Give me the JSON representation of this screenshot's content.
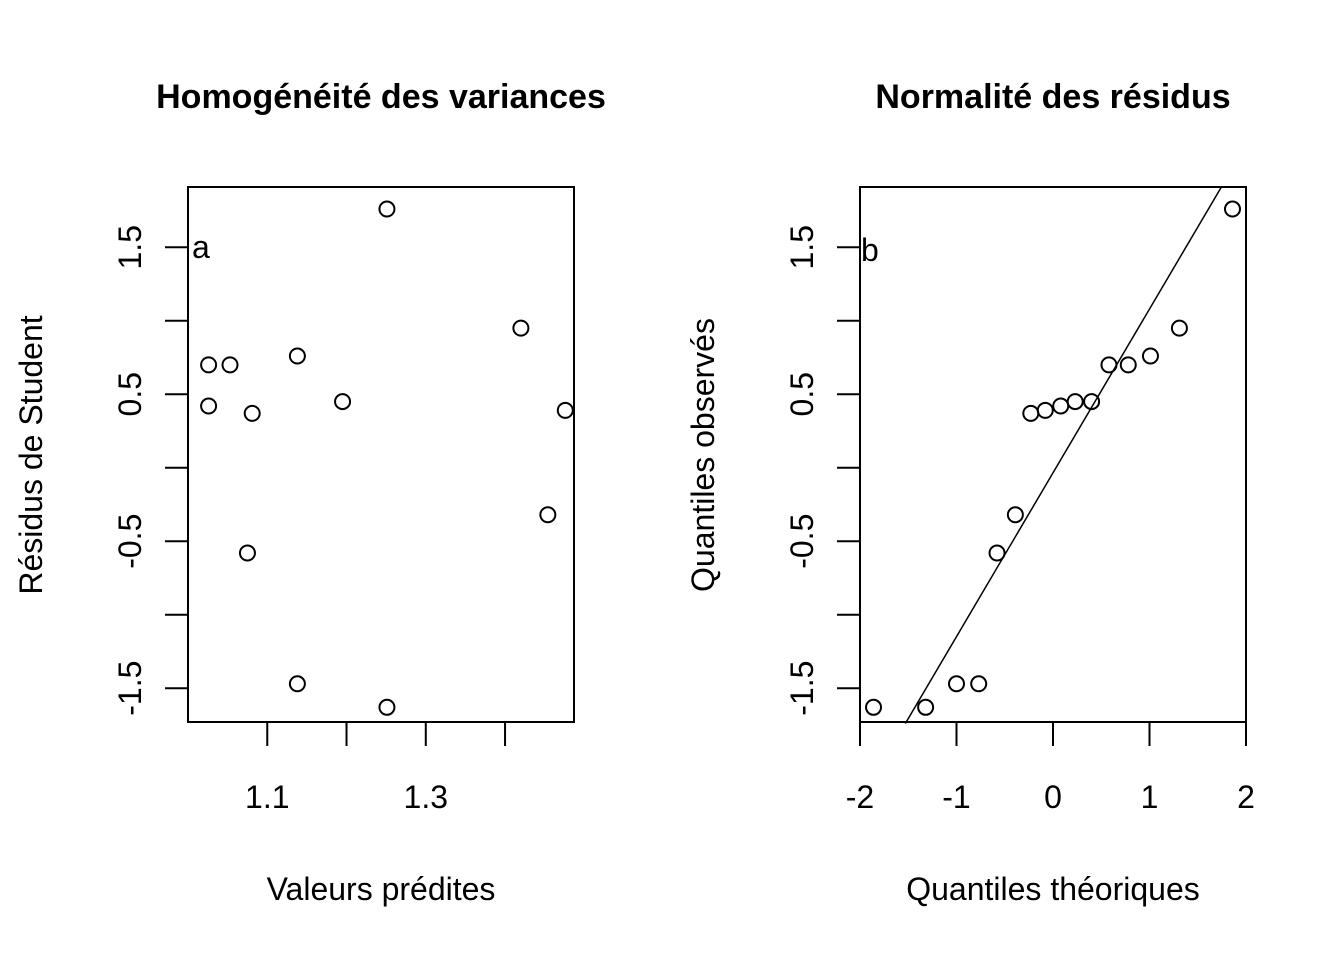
{
  "figure": {
    "background": "#ffffff",
    "foreground": "#000000"
  },
  "chart_data": [
    {
      "type": "scatter",
      "panel_label": "a",
      "title": "Homogénéité des variances",
      "xlabel": "Valeurs prédites",
      "ylabel": "Résidus de Student",
      "xlim": [
        1.0,
        1.487
      ],
      "ylim": [
        -1.73,
        1.91
      ],
      "x_ticks": [
        1.1,
        1.2,
        1.3,
        1.4
      ],
      "x_tick_labels": [
        "1.1",
        "",
        "1.3",
        ""
      ],
      "y_ticks": [
        -1.5,
        -1.0,
        -0.5,
        0.0,
        0.5,
        1.0,
        1.5
      ],
      "y_tick_labels": [
        "-1.5",
        "",
        "-0.5",
        "",
        "0.5",
        "",
        "1.5"
      ],
      "grid": false,
      "marker": "open-circle",
      "points": [
        {
          "x": 1.026,
          "y": 0.7
        },
        {
          "x": 1.026,
          "y": 0.42
        },
        {
          "x": 1.053,
          "y": 0.7
        },
        {
          "x": 1.081,
          "y": 0.37
        },
        {
          "x": 1.075,
          "y": -0.58
        },
        {
          "x": 1.138,
          "y": 0.76
        },
        {
          "x": 1.138,
          "y": -1.47
        },
        {
          "x": 1.195,
          "y": 0.45
        },
        {
          "x": 1.251,
          "y": 1.76
        },
        {
          "x": 1.251,
          "y": -1.63
        },
        {
          "x": 1.42,
          "y": 0.95
        },
        {
          "x": 1.454,
          "y": -0.32
        },
        {
          "x": 1.476,
          "y": 0.39
        }
      ]
    },
    {
      "type": "scatter",
      "subtype": "qq-plot",
      "panel_label": "b",
      "title": "Normalité des résidus",
      "xlabel": "Quantiles théoriques",
      "ylabel": "Quantiles observés",
      "xlim": [
        -2.0,
        2.0
      ],
      "ylim": [
        -1.73,
        1.91
      ],
      "x_ticks": [
        -2,
        -1,
        0,
        1,
        2
      ],
      "x_tick_labels": [
        "-2",
        "-1",
        "0",
        "1",
        "2"
      ],
      "y_ticks": [
        -1.5,
        -1.0,
        -0.5,
        0.0,
        0.5,
        1.0,
        1.5
      ],
      "y_tick_labels": [
        "-1.5",
        "",
        "-0.5",
        "",
        "0.5",
        "",
        "1.5"
      ],
      "grid": false,
      "marker": "open-circle",
      "points": [
        {
          "x": -1.86,
          "y": -1.63
        },
        {
          "x": -1.32,
          "y": -1.63
        },
        {
          "x": -1.0,
          "y": -1.47
        },
        {
          "x": -0.77,
          "y": -1.47
        },
        {
          "x": -0.58,
          "y": -0.58
        },
        {
          "x": -0.39,
          "y": -0.32
        },
        {
          "x": -0.23,
          "y": 0.37
        },
        {
          "x": -0.08,
          "y": 0.39
        },
        {
          "x": 0.08,
          "y": 0.42
        },
        {
          "x": 0.23,
          "y": 0.45
        },
        {
          "x": 0.4,
          "y": 0.45
        },
        {
          "x": 0.58,
          "y": 0.7
        },
        {
          "x": 0.78,
          "y": 0.7
        },
        {
          "x": 1.01,
          "y": 0.76
        },
        {
          "x": 1.31,
          "y": 0.95
        },
        {
          "x": 1.86,
          "y": 1.76
        }
      ],
      "reference_line": {
        "x0": -1.53,
        "y0": -1.74,
        "x1": 1.745,
        "y1": 1.91
      }
    }
  ]
}
